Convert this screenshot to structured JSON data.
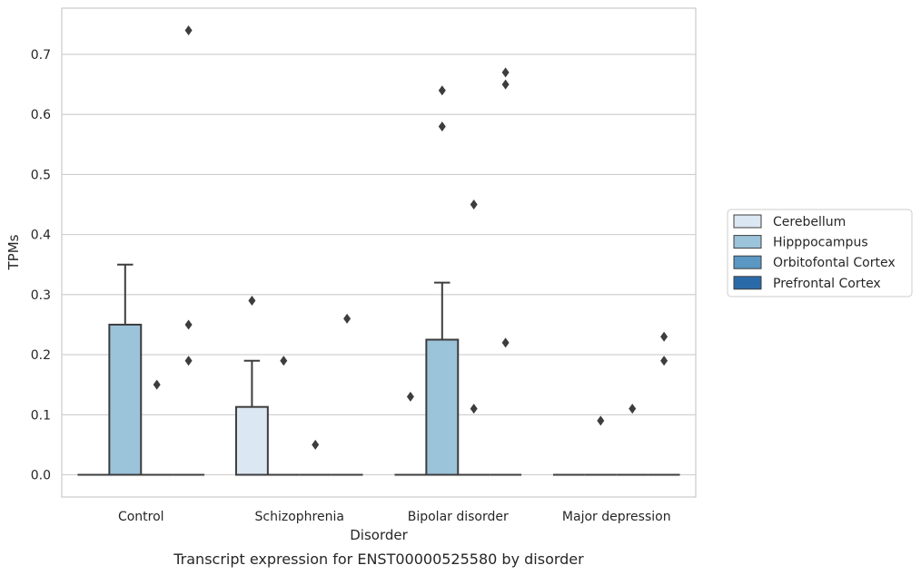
{
  "chart_data": {
    "type": "boxplot",
    "title": "",
    "caption": "Transcript expression for ENST00000525580 by disorder",
    "xlabel": "Disorder",
    "ylabel": "TPMs",
    "ylim": [
      -0.037,
      0.777
    ],
    "yticks": [
      0.0,
      0.1,
      0.2,
      0.3,
      0.4,
      0.5,
      0.6,
      0.7
    ],
    "ytick_labels": [
      "0.0",
      "0.1",
      "0.2",
      "0.3",
      "0.4",
      "0.5",
      "0.6",
      "0.7"
    ],
    "grid": true,
    "legend_position": "right",
    "categories": [
      "Control",
      "Schizophrenia",
      "Bipolar disorder",
      "Major depression"
    ],
    "series": [
      {
        "name": "Cerebellum",
        "color": "#dbe7f3",
        "boxes": [
          {
            "q1": 0,
            "median": 0,
            "q3": 0,
            "whisker_low": 0,
            "whisker_high": 0,
            "outliers": []
          },
          {
            "q1": 0,
            "median": 0,
            "q3": 0.113,
            "whisker_low": 0,
            "whisker_high": 0.19,
            "outliers": [
              0.29
            ]
          },
          {
            "q1": 0,
            "median": 0,
            "q3": 0,
            "whisker_low": 0,
            "whisker_high": 0,
            "outliers": [
              0.13
            ]
          },
          {
            "q1": 0,
            "median": 0,
            "q3": 0,
            "whisker_low": 0,
            "whisker_high": 0,
            "outliers": []
          }
        ]
      },
      {
        "name": "Hipppocampus",
        "color": "#9bc3da",
        "boxes": [
          {
            "q1": 0,
            "median": 0,
            "q3": 0.25,
            "whisker_low": 0,
            "whisker_high": 0.35,
            "outliers": []
          },
          {
            "q1": 0,
            "median": 0,
            "q3": 0,
            "whisker_low": 0,
            "whisker_high": 0,
            "outliers": [
              0.19
            ]
          },
          {
            "q1": 0,
            "median": 0,
            "q3": 0.225,
            "whisker_low": 0,
            "whisker_high": 0.32,
            "outliers": [
              0.58,
              0.64
            ]
          },
          {
            "q1": 0,
            "median": 0,
            "q3": 0,
            "whisker_low": 0,
            "whisker_high": 0,
            "outliers": [
              0.09
            ]
          }
        ]
      },
      {
        "name": "Orbitofontal Cortex",
        "color": "#5a97c3",
        "boxes": [
          {
            "q1": 0,
            "median": 0,
            "q3": 0,
            "whisker_low": 0,
            "whisker_high": 0,
            "outliers": [
              0.15
            ]
          },
          {
            "q1": 0,
            "median": 0,
            "q3": 0,
            "whisker_low": 0,
            "whisker_high": 0,
            "outliers": [
              0.05
            ]
          },
          {
            "q1": 0,
            "median": 0,
            "q3": 0,
            "whisker_low": 0,
            "whisker_high": 0,
            "outliers": [
              0.11,
              0.45
            ]
          },
          {
            "q1": 0,
            "median": 0,
            "q3": 0,
            "whisker_low": 0,
            "whisker_high": 0,
            "outliers": [
              0.11
            ]
          }
        ]
      },
      {
        "name": "Prefrontal Cortex",
        "color": "#2b6aa8",
        "boxes": [
          {
            "q1": 0,
            "median": 0,
            "q3": 0,
            "whisker_low": 0,
            "whisker_high": 0,
            "outliers": [
              0.19,
              0.25,
              0.74
            ]
          },
          {
            "q1": 0,
            "median": 0,
            "q3": 0,
            "whisker_low": 0,
            "whisker_high": 0,
            "outliers": [
              0.26
            ]
          },
          {
            "q1": 0,
            "median": 0,
            "q3": 0,
            "whisker_low": 0,
            "whisker_high": 0,
            "outliers": [
              0.22,
              0.65,
              0.67
            ]
          },
          {
            "q1": 0,
            "median": 0,
            "q3": 0,
            "whisker_low": 0,
            "whisker_high": 0,
            "outliers": [
              0.19,
              0.23
            ]
          }
        ]
      }
    ]
  }
}
